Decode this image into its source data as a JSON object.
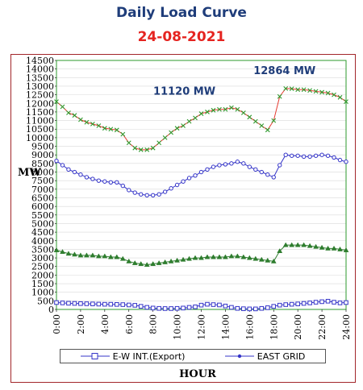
{
  "colors": {
    "title": "#1f3d7a",
    "subtitle": "#e52420",
    "frame": "#a2262a",
    "plot_border": "#2e9a2e",
    "grid": "#d9d9d9",
    "annotation": "#1f3d7a",
    "series_top_line": "#e53a30",
    "series_top_marker": "#2e9a2e",
    "series_east": "#3434c8",
    "series_third": "#2e7d2e",
    "series_export": "#3434c8"
  },
  "chart_data": {
    "type": "line",
    "title": "Daily Load Curve",
    "subtitle": "24-08-2021",
    "xlabel": "HOUR",
    "ylabel": "MW",
    "xlim": [
      0,
      24
    ],
    "ylim": [
      0,
      14500
    ],
    "ytick_step": 500,
    "yticks": [
      "0",
      "500",
      "1000",
      "1500",
      "2000",
      "2500",
      "3000",
      "3500",
      "4000",
      "4500",
      "5000",
      "5500",
      "6000",
      "6500",
      "7000",
      "7500",
      "8000",
      "8500",
      "9000",
      "9500",
      "10000",
      "10500",
      "11000",
      "11500",
      "12000",
      "12500",
      "13000",
      "13500",
      "14000",
      "14500"
    ],
    "xticks": [
      "0:00",
      "2:00",
      "4:00",
      "6:00",
      "8:00",
      "10:00",
      "12:00",
      "14:00",
      "16:00",
      "18:00",
      "20:00",
      "22:00",
      "24:00"
    ],
    "x": [
      0,
      0.5,
      1,
      1.5,
      2,
      2.5,
      3,
      3.5,
      4,
      4.5,
      5,
      5.5,
      6,
      6.5,
      7,
      7.5,
      8,
      8.5,
      9,
      9.5,
      10,
      10.5,
      11,
      11.5,
      12,
      12.5,
      13,
      13.5,
      14,
      14.5,
      15,
      15.5,
      16,
      16.5,
      17,
      17.5,
      18,
      18.5,
      19,
      19.5,
      20,
      20.5,
      21,
      21.5,
      22,
      22.5,
      23,
      23.5,
      24
    ],
    "series": [
      {
        "name": "",
        "color_key": "series_top_line",
        "marker": "x",
        "values": [
          12100,
          11800,
          11450,
          11300,
          11050,
          10900,
          10800,
          10700,
          10550,
          10500,
          10450,
          10200,
          9700,
          9400,
          9300,
          9300,
          9400,
          9700,
          10000,
          10300,
          10550,
          10700,
          10950,
          11150,
          11400,
          11500,
          11600,
          11650,
          11650,
          11750,
          11650,
          11450,
          11200,
          10950,
          10700,
          10450,
          11000,
          12400,
          12864,
          12850,
          12800,
          12800,
          12750,
          12700,
          12650,
          12600,
          12500,
          12350,
          12100
        ]
      },
      {
        "name": "EAST GRID",
        "color_key": "series_east",
        "marker": "circle",
        "values": [
          8650,
          8400,
          8150,
          8000,
          7850,
          7700,
          7600,
          7500,
          7450,
          7400,
          7400,
          7200,
          6950,
          6800,
          6700,
          6650,
          6650,
          6700,
          6850,
          7050,
          7250,
          7450,
          7650,
          7800,
          8000,
          8150,
          8300,
          8400,
          8450,
          8500,
          8600,
          8500,
          8300,
          8150,
          8000,
          7850,
          7700,
          8400,
          9000,
          8950,
          8950,
          8900,
          8900,
          8950,
          9000,
          8950,
          8850,
          8700,
          8600
        ]
      },
      {
        "name": "",
        "color_key": "series_third",
        "marker": "triangle",
        "values": [
          3450,
          3350,
          3250,
          3200,
          3150,
          3150,
          3150,
          3100,
          3100,
          3050,
          3050,
          2950,
          2800,
          2700,
          2650,
          2600,
          2650,
          2700,
          2750,
          2800,
          2850,
          2900,
          2950,
          3000,
          3000,
          3050,
          3050,
          3050,
          3050,
          3100,
          3100,
          3050,
          3000,
          2950,
          2900,
          2850,
          2800,
          3400,
          3750,
          3750,
          3750,
          3750,
          3700,
          3650,
          3600,
          3550,
          3550,
          3500,
          3450
        ]
      },
      {
        "name": "E-W INT.(Export)",
        "color_key": "series_export",
        "marker": "square",
        "values": [
          400,
          380,
          360,
          350,
          340,
          330,
          320,
          310,
          300,
          300,
          290,
          280,
          260,
          240,
          180,
          120,
          80,
          60,
          50,
          50,
          60,
          80,
          120,
          150,
          250,
          300,
          280,
          260,
          200,
          120,
          60,
          40,
          30,
          30,
          60,
          100,
          180,
          250,
          280,
          300,
          320,
          350,
          380,
          420,
          450,
          480,
          420,
          380,
          400
        ]
      }
    ],
    "annotations": [
      {
        "text": "11120 MW",
        "x": 10.6,
        "y": 12500
      },
      {
        "text": "12864 MW",
        "x": 18.9,
        "y": 13700
      }
    ],
    "grid": true,
    "legend": {
      "position": "bottom",
      "entries": [
        "E-W INT.(Export)",
        "EAST GRID"
      ]
    }
  }
}
